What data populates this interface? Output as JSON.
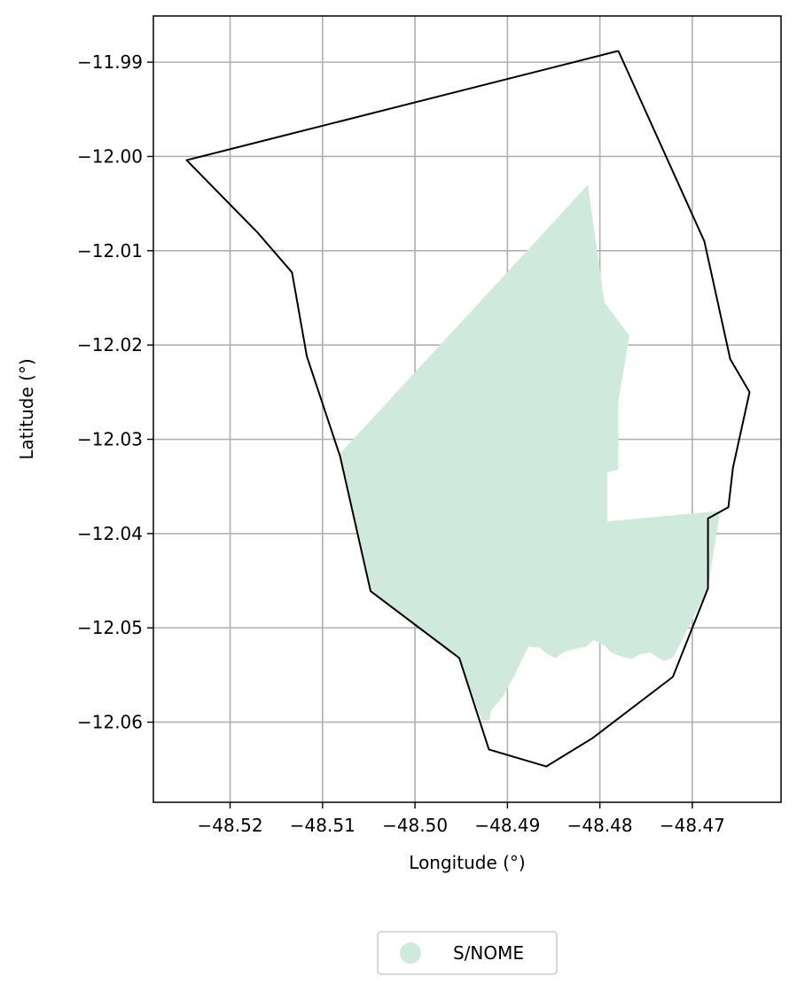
{
  "chart_data": {
    "type": "map",
    "xlabel": "Longitude (°)",
    "ylabel": "Latitude (°)",
    "xlim": [
      -48.5283,
      -48.4604
    ],
    "ylim": [
      -12.0685,
      -11.9851
    ],
    "grid": true,
    "x_ticks": [
      -48.52,
      -48.51,
      -48.5,
      -48.49,
      -48.48,
      -48.47
    ],
    "y_ticks": [
      -11.99,
      -12.0,
      -12.01,
      -12.02,
      -12.03,
      -12.04,
      -12.05,
      -12.06
    ],
    "x_tick_labels": [
      "−48.52",
      "−48.51",
      "−48.50",
      "−48.49",
      "−48.48",
      "−48.47"
    ],
    "y_tick_labels": [
      "−11.99",
      "−12.00",
      "−12.01",
      "−12.02",
      "−12.03",
      "−12.04",
      "−12.05",
      "−12.06"
    ],
    "boundary": {
      "stroke": "#000000",
      "fill": "none",
      "coordinates": [
        [
          -48.478,
          -11.9888
        ],
        [
          -48.4687,
          -12.009
        ],
        [
          -48.4659,
          -12.0215
        ],
        [
          -48.4638,
          -12.025
        ],
        [
          -48.4656,
          -12.033
        ],
        [
          -48.4661,
          -12.0372
        ],
        [
          -48.4683,
          -12.0384
        ],
        [
          -48.4683,
          -12.0458
        ],
        [
          -48.4721,
          -12.0552
        ],
        [
          -48.4808,
          -12.0617
        ],
        [
          -48.4858,
          -12.0647
        ],
        [
          -48.492,
          -12.0629
        ],
        [
          -48.4952,
          -12.0532
        ],
        [
          -48.5048,
          -12.0461
        ],
        [
          -48.5081,
          -12.0318
        ],
        [
          -48.5117,
          -12.0212
        ],
        [
          -48.5133,
          -12.0123
        ],
        [
          -48.517,
          -12.0081
        ],
        [
          -48.5247,
          -12.0004
        ],
        [
          -48.478,
          -11.9888
        ]
      ]
    },
    "region": {
      "fill": "#cfeadd",
      "coordinates": [
        [
          -48.5081,
          -12.0315
        ],
        [
          -48.4813,
          -12.003
        ],
        [
          -48.4795,
          -12.0155
        ],
        [
          -48.4768,
          -12.019
        ],
        [
          -48.478,
          -12.026
        ],
        [
          -48.478,
          -12.0332
        ],
        [
          -48.4792,
          -12.0335
        ],
        [
          -48.4792,
          -12.0387
        ],
        [
          -48.467,
          -12.0376
        ],
        [
          -48.4683,
          -12.0458
        ],
        [
          -48.4721,
          -12.0532
        ],
        [
          -48.473,
          -12.0535
        ],
        [
          -48.4737,
          -12.0532
        ],
        [
          -48.4745,
          -12.0526
        ],
        [
          -48.4757,
          -12.0528
        ],
        [
          -48.4765,
          -12.0533
        ],
        [
          -48.4775,
          -12.0531
        ],
        [
          -48.4788,
          -12.0526
        ],
        [
          -48.4796,
          -12.0518
        ],
        [
          -48.4807,
          -12.0513
        ],
        [
          -48.4815,
          -12.052
        ],
        [
          -48.4825,
          -12.0522
        ],
        [
          -48.4837,
          -12.0525
        ],
        [
          -48.4848,
          -12.0532
        ],
        [
          -48.4857,
          -12.0528
        ],
        [
          -48.4865,
          -12.0521
        ],
        [
          -48.4877,
          -12.052
        ],
        [
          -48.4885,
          -12.0535
        ],
        [
          -48.4892,
          -12.055
        ],
        [
          -48.4905,
          -12.0573
        ],
        [
          -48.4918,
          -12.0588
        ],
        [
          -48.4919,
          -12.0598
        ],
        [
          -48.4928,
          -12.0598
        ],
        [
          -48.4952,
          -12.0532
        ],
        [
          -48.5048,
          -12.0461
        ],
        [
          -48.5081,
          -12.0315
        ]
      ]
    },
    "legend": {
      "placement": "bottom-center",
      "entries": [
        {
          "label": "S/NOME",
          "color": "#cfeadd",
          "marker": "circle"
        }
      ]
    },
    "colors": {
      "region_fill": "#cfeadd",
      "boundary_stroke": "#000000",
      "grid": "#b0b0b0",
      "axes": "#000000"
    }
  }
}
